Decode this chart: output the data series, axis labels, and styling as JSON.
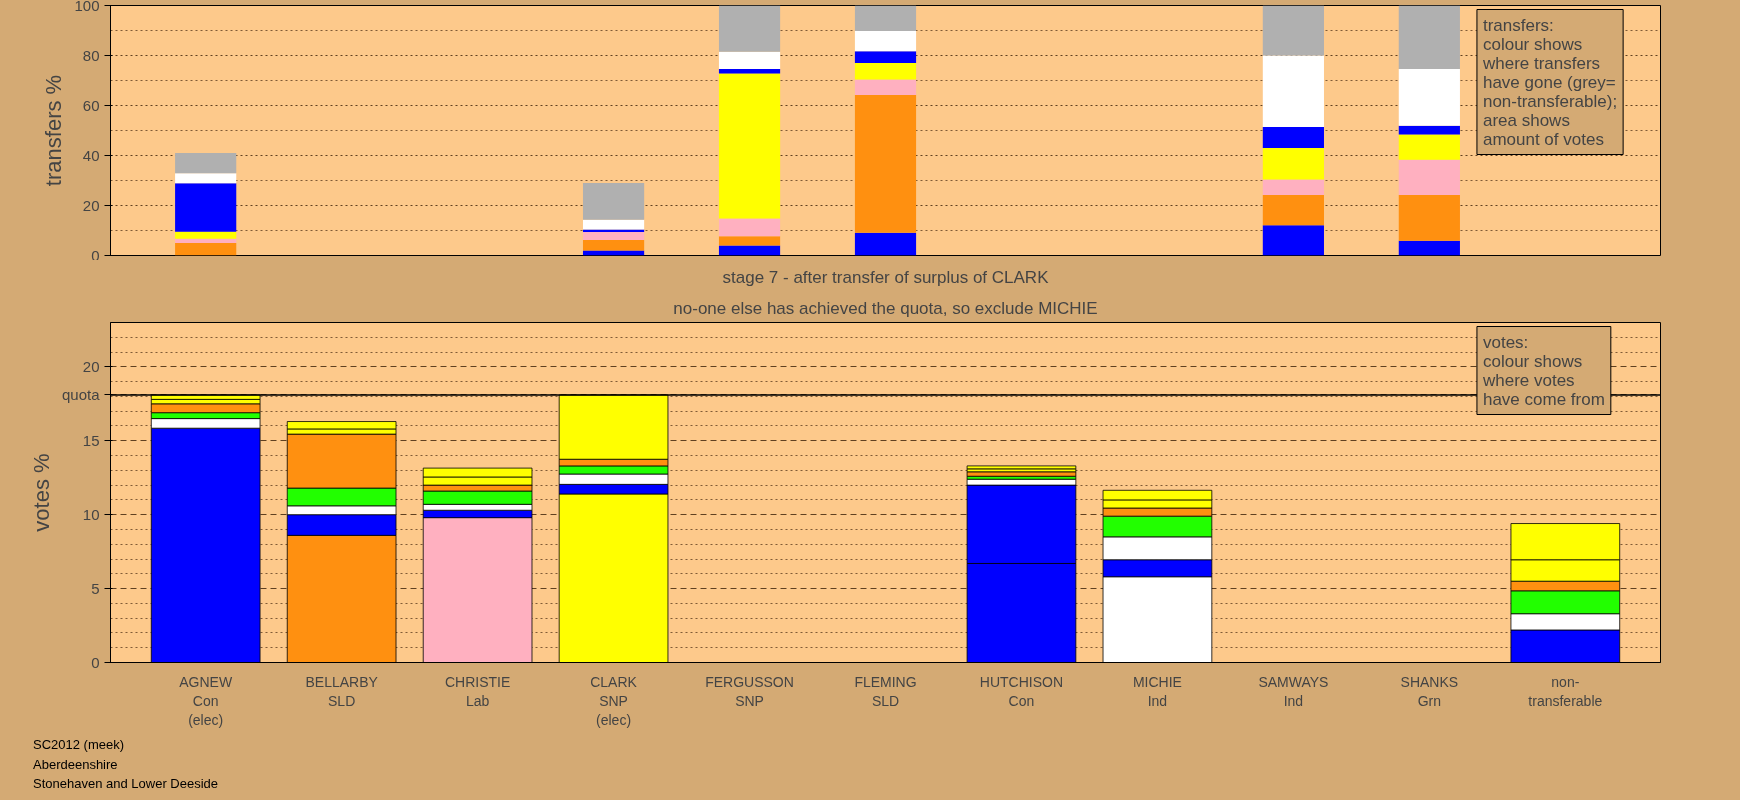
{
  "chart_data": [
    {
      "type": "bar",
      "stacked": true,
      "ylabel": "transfers %",
      "tick_labels": "y",
      "grid": "y",
      "ylim": [
        0,
        100
      ],
      "yticks": [
        0,
        {
          "value": 10,
          "label": null
        },
        20,
        {
          "value": 30,
          "label": null
        },
        40,
        {
          "value": 50,
          "label": null
        },
        60,
        {
          "value": 70,
          "label": null
        },
        80,
        {
          "value": 90,
          "label": null
        },
        100
      ],
      "categories": [
        null,
        null,
        null,
        null,
        null,
        null,
        null,
        null,
        null,
        null,
        null
      ],
      "series": [
        {
          "color": "#0000ff",
          "values": [
            null,
            null,
            null,
            2,
            4,
            9.1,
            null,
            null,
            12.1,
            5.9,
            null
          ]
        },
        {
          "color": "#ff9010",
          "values": [
            5,
            null,
            null,
            4.2,
            3.7,
            55.1,
            null,
            null,
            12.1,
            18.3,
            null
          ]
        },
        {
          "color": "#ffb0c0",
          "values": [
            1.7,
            null,
            null,
            3.2,
            7.1,
            6.2,
            null,
            null,
            6.2,
            14.1,
            null
          ]
        },
        {
          "color": "#ffff00",
          "values": [
            2.8,
            null,
            null,
            null,
            58,
            6.6,
            null,
            null,
            12.6,
            10.1,
            null
          ]
        },
        {
          "color": "#0000ff",
          "values": [
            19.4,
            null,
            null,
            1,
            1.8,
            4.7,
            null,
            null,
            8.4,
            3.5,
            null
          ]
        },
        {
          "color": "#ffffff",
          "values": [
            4,
            null,
            null,
            3.9,
            6.9,
            8.1,
            null,
            null,
            28.6,
            22.7,
            null
          ]
        },
        {
          "color": "#b0b0b0",
          "values": [
            8.1,
            null,
            null,
            14.7,
            18.5,
            10.2,
            null,
            null,
            20,
            25.4,
            null
          ]
        }
      ],
      "annotations": [
        "transfers:\ncolour shows\nwhere transfers\nhave gone (grey=\nnon-transferable);\narea shows\namount of votes"
      ]
    },
    {
      "type": "bar",
      "stacked": true,
      "title": "stage 7 - after transfer of surplus of CLARK",
      "subtitle": "no-one else has achieved the quota, so exclude MICHIE",
      "ylabel": "votes %",
      "grid": "y",
      "ylim": [
        0,
        23
      ],
      "yticks": [
        0,
        {
          "value": 1,
          "label": null
        },
        {
          "value": 2,
          "label": null
        },
        {
          "value": 3,
          "label": null
        },
        {
          "value": 4,
          "label": null
        },
        5,
        {
          "value": 6,
          "label": null
        },
        {
          "value": 7,
          "label": null
        },
        {
          "value": 8,
          "label": null
        },
        {
          "value": 9,
          "label": null
        },
        10,
        {
          "value": 11,
          "label": null
        },
        {
          "value": 12,
          "label": null
        },
        {
          "value": 13,
          "label": null
        },
        {
          "value": 14,
          "label": null
        },
        15,
        {
          "value": 16,
          "label": null
        },
        {
          "value": 17,
          "label": null
        },
        {
          "value": 18,
          "label": null
        },
        {
          "value": 19,
          "label": null
        },
        20,
        {
          "value": 21,
          "label": null
        },
        {
          "value": 22,
          "label": null
        },
        {
          "value": 23,
          "label": null
        }
      ],
      "categories": [
        "AGNEW\nCon\n(elec)",
        "BELLARBY\nSLD",
        "CHRISTIE\nLab",
        "CLARK\nSNP\n(elec)",
        "FERGUSSON\nSNP",
        "FLEMING\nSLD",
        "HUTCHISON\nCon",
        "MICHIE\nInd",
        "SAMWAYS\nInd",
        "SHANKS\nGrn",
        "non-\ntransferable"
      ],
      "ref_lines": [
        {
          "axis": "y",
          "value": 18.1,
          "label": "quota",
          "color": "#000000"
        }
      ],
      "series": [
        {
          "colors": [
            "#0000ff",
            "#ff9010",
            "#ffb0c0",
            "#ffff00",
            "#ffff00",
            "#ff9010",
            "#0000ff",
            "#ffffff",
            "#ffffff",
            "#22ff00",
            "#b0b0b0"
          ],
          "values": [
            15.85,
            8.6,
            9.8,
            11.4,
            null,
            null,
            6.7,
            5.8,
            null,
            null,
            null
          ]
        },
        {
          "color": "#0000ff",
          "values": [
            null,
            1.4,
            0.5,
            0.65,
            null,
            null,
            5.3,
            1.15,
            null,
            null,
            2.2
          ]
        },
        {
          "color": "#ffffff",
          "values": [
            0.65,
            0.6,
            0.4,
            0.7,
            null,
            null,
            0.4,
            1.55,
            null,
            null,
            1.1
          ]
        },
        {
          "color": "#22ff00",
          "values": [
            0.4,
            1.2,
            0.9,
            0.55,
            null,
            null,
            0.2,
            1.4,
            null,
            null,
            1.55
          ]
        },
        {
          "color": "#ff9010",
          "values": [
            0.6,
            3.65,
            0.4,
            0.45,
            null,
            null,
            0.3,
            0.55,
            null,
            null,
            0.65
          ]
        },
        {
          "color": "#ffff00",
          "values": [
            0.3,
            0.35,
            0.55,
            4.35,
            null,
            null,
            0.2,
            0.55,
            null,
            null,
            1.45
          ]
        },
        {
          "color": "#ffff00",
          "values": [
            0.3,
            0.5,
            0.6,
            null,
            null,
            null,
            0.2,
            0.65,
            null,
            null,
            2.45
          ]
        }
      ],
      "annotations": [
        "votes:\ncolour shows\nwhere votes\nhave come from",
        "SC2012 (meek)",
        "Aberdeenshire",
        "Stonehaven and Lower Deeside"
      ]
    }
  ]
}
